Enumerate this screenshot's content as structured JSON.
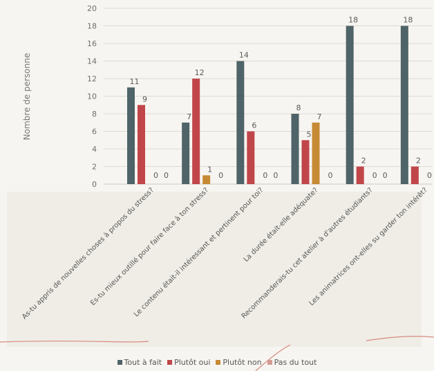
{
  "chart_data": {
    "type": "bar",
    "ylabel": "Nombre de personne",
    "xlabel": "",
    "ylim": [
      0,
      20
    ],
    "yticks": [
      0,
      2,
      4,
      6,
      8,
      10,
      12,
      14,
      16,
      18,
      20
    ],
    "grid": true,
    "legend_position": "bottom",
    "categories": [
      "As-tu appris de nouvelles choses à propos du stress?",
      "Es-tu mieux outillé pour faire face à ton stress?",
      "Le contenu était-il intéressant et pertinent pour toi?",
      "La durée était-elle adéquate?",
      "Recommanderais-tu cet atelier à d'autres étudiants?",
      "Les animatrices ont-elles su garder ton intérêt?"
    ],
    "series": [
      {
        "name": "Tout à fait",
        "color": "#4f6468",
        "values": [
          11,
          7,
          14,
          8,
          18,
          18
        ]
      },
      {
        "name": "Plutôt oui",
        "color": "#c0464a",
        "values": [
          9,
          12,
          6,
          5,
          2,
          2
        ]
      },
      {
        "name": "Plutôt non",
        "color": "#c68a35",
        "values": [
          0,
          1,
          0,
          7,
          0,
          0
        ]
      },
      {
        "name": "Pas du tout",
        "color": "#d59a94",
        "values": [
          0,
          0,
          0,
          0,
          0,
          0
        ]
      }
    ]
  }
}
